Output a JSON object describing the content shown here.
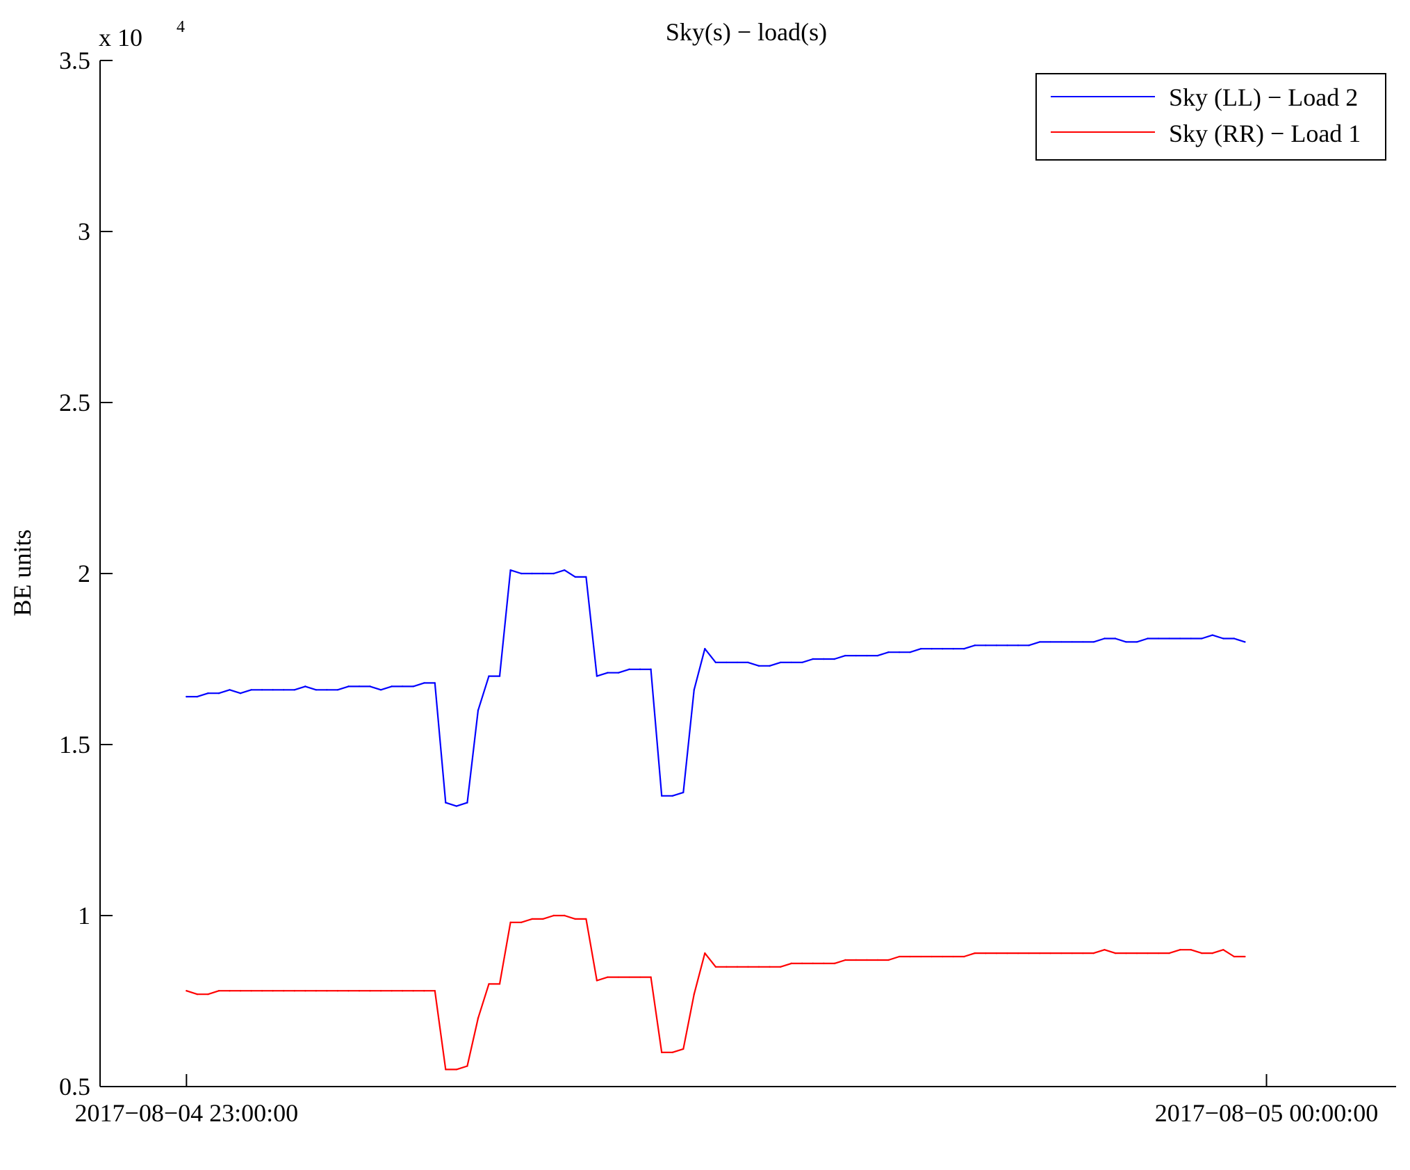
{
  "chart_data": {
    "type": "line",
    "title": "Sky(s) − load(s)",
    "xlabel": "",
    "ylabel": "BE units",
    "y_multiplier_label": "x 10",
    "y_multiplier_exponent": "4",
    "ylim": [
      0.5,
      3.5
    ],
    "xlim_minutes": [
      -8,
      112
    ],
    "yticks": [
      {
        "value": 0.5,
        "label": "0.5"
      },
      {
        "value": 1.0,
        "label": "1"
      },
      {
        "value": 1.5,
        "label": "1.5"
      },
      {
        "value": 2.0,
        "label": "2"
      },
      {
        "value": 2.5,
        "label": "2.5"
      },
      {
        "value": 3.0,
        "label": "3"
      },
      {
        "value": 3.5,
        "label": "3.5"
      }
    ],
    "xticks": [
      {
        "minute": 0,
        "label": "2017−08−04 23:00:00"
      },
      {
        "minute": 100,
        "label": "2017−08−05 00:00:00"
      }
    ],
    "grid": false,
    "legend_position": "top-right",
    "series": [
      {
        "name": "Sky (LL) − Load 2",
        "color": "#0000ff",
        "x_minutes": [
          0,
          1,
          2,
          3,
          4,
          5,
          6,
          7,
          8,
          9,
          10,
          11,
          12,
          13,
          14,
          15,
          16,
          17,
          18,
          19,
          20,
          21,
          22,
          23,
          24,
          25,
          26,
          27,
          28,
          29,
          30,
          31,
          32,
          33,
          34,
          35,
          36,
          37,
          38,
          39,
          40,
          41,
          42,
          43,
          44,
          45,
          46,
          47,
          48,
          49,
          50,
          51,
          52,
          53,
          54,
          55,
          56,
          57,
          58,
          59,
          60,
          61,
          62,
          63,
          64,
          65,
          66,
          67,
          68,
          69,
          70,
          71,
          72,
          73,
          74,
          75,
          76,
          77,
          78,
          79,
          80,
          81,
          82,
          83,
          84,
          85,
          86,
          87,
          88,
          89,
          90,
          91,
          92,
          93,
          94,
          95,
          96,
          97,
          98
        ],
        "y": [
          1.64,
          1.64,
          1.65,
          1.65,
          1.66,
          1.65,
          1.66,
          1.66,
          1.66,
          1.66,
          1.66,
          1.67,
          1.66,
          1.66,
          1.66,
          1.67,
          1.67,
          1.67,
          1.66,
          1.67,
          1.67,
          1.67,
          1.68,
          1.68,
          1.33,
          1.32,
          1.33,
          1.6,
          1.7,
          1.7,
          2.01,
          2.0,
          2.0,
          2.0,
          2.0,
          2.01,
          1.99,
          1.99,
          1.7,
          1.71,
          1.71,
          1.72,
          1.72,
          1.72,
          1.35,
          1.35,
          1.36,
          1.66,
          1.78,
          1.74,
          1.74,
          1.74,
          1.74,
          1.73,
          1.73,
          1.74,
          1.74,
          1.74,
          1.75,
          1.75,
          1.75,
          1.76,
          1.76,
          1.76,
          1.76,
          1.77,
          1.77,
          1.77,
          1.78,
          1.78,
          1.78,
          1.78,
          1.78,
          1.79,
          1.79,
          1.79,
          1.79,
          1.79,
          1.79,
          1.8,
          1.8,
          1.8,
          1.8,
          1.8,
          1.8,
          1.81,
          1.81,
          1.8,
          1.8,
          1.81,
          1.81,
          1.81,
          1.81,
          1.81,
          1.81,
          1.82,
          1.81,
          1.81,
          1.8
        ]
      },
      {
        "name": "Sky (RR) − Load 1",
        "color": "#ff0000",
        "x_minutes": [
          0,
          1,
          2,
          3,
          4,
          5,
          6,
          7,
          8,
          9,
          10,
          11,
          12,
          13,
          14,
          15,
          16,
          17,
          18,
          19,
          20,
          21,
          22,
          23,
          24,
          25,
          26,
          27,
          28,
          29,
          30,
          31,
          32,
          33,
          34,
          35,
          36,
          37,
          38,
          39,
          40,
          41,
          42,
          43,
          44,
          45,
          46,
          47,
          48,
          49,
          50,
          51,
          52,
          53,
          54,
          55,
          56,
          57,
          58,
          59,
          60,
          61,
          62,
          63,
          64,
          65,
          66,
          67,
          68,
          69,
          70,
          71,
          72,
          73,
          74,
          75,
          76,
          77,
          78,
          79,
          80,
          81,
          82,
          83,
          84,
          85,
          86,
          87,
          88,
          89,
          90,
          91,
          92,
          93,
          94,
          95,
          96,
          97,
          98
        ],
        "y": [
          0.78,
          0.77,
          0.77,
          0.78,
          0.78,
          0.78,
          0.78,
          0.78,
          0.78,
          0.78,
          0.78,
          0.78,
          0.78,
          0.78,
          0.78,
          0.78,
          0.78,
          0.78,
          0.78,
          0.78,
          0.78,
          0.78,
          0.78,
          0.78,
          0.55,
          0.55,
          0.56,
          0.7,
          0.8,
          0.8,
          0.98,
          0.98,
          0.99,
          0.99,
          1.0,
          1.0,
          0.99,
          0.99,
          0.81,
          0.82,
          0.82,
          0.82,
          0.82,
          0.82,
          0.6,
          0.6,
          0.61,
          0.77,
          0.89,
          0.85,
          0.85,
          0.85,
          0.85,
          0.85,
          0.85,
          0.85,
          0.86,
          0.86,
          0.86,
          0.86,
          0.86,
          0.87,
          0.87,
          0.87,
          0.87,
          0.87,
          0.88,
          0.88,
          0.88,
          0.88,
          0.88,
          0.88,
          0.88,
          0.89,
          0.89,
          0.89,
          0.89,
          0.89,
          0.89,
          0.89,
          0.89,
          0.89,
          0.89,
          0.89,
          0.89,
          0.9,
          0.89,
          0.89,
          0.89,
          0.89,
          0.89,
          0.89,
          0.9,
          0.9,
          0.89,
          0.89,
          0.9,
          0.88,
          0.88
        ]
      }
    ]
  }
}
